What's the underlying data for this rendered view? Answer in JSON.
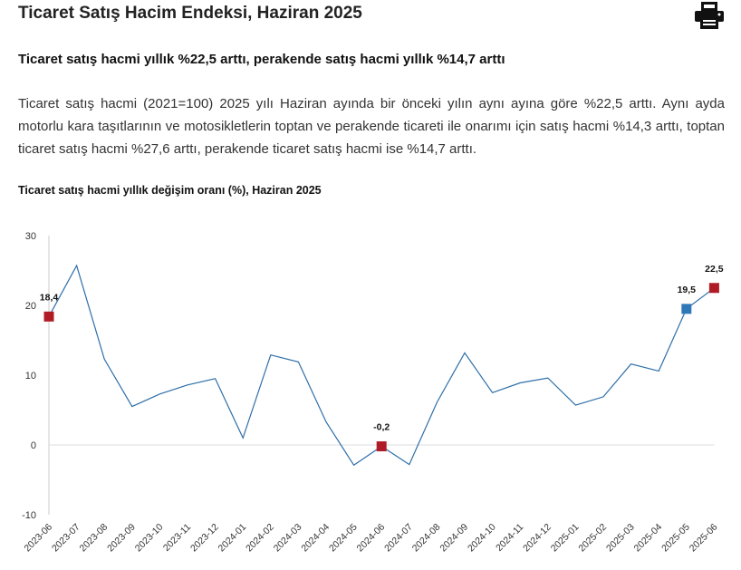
{
  "page": {
    "title": "Ticaret Satış Hacim Endeksi, Haziran 2025",
    "print_icon": "printer-icon",
    "subtitle": "Ticaret satış hacmi yıllık %22,5 arttı, perakende satış hacmi yıllık %14,7 arttı",
    "body": "Ticaret satış hacmi (2021=100) 2025 yılı Haziran ayında bir önceki yılın aynı ayına göre %22,5 arttı. Aynı ayda motorlu kara taşıtlarının ve motosikletlerin toptan ve perakende ticareti ile onarımı için satış hacmi %14,3 arttı, toptan ticaret satış hacmi %27,6 arttı, perakende ticaret satış hacmi ise %14,7 arttı."
  },
  "chart_data": {
    "type": "line",
    "title": "Ticaret satış hacmi yıllık değişim oranı (%), Haziran 2025",
    "xlabel": "",
    "ylabel": "",
    "ylim": [
      -10,
      30
    ],
    "yticks": [
      "30",
      "20",
      "10",
      "0",
      "-10"
    ],
    "grid": false,
    "line_color": "#2e6fa8",
    "categories": [
      "2023-06",
      "2023-07",
      "2023-08",
      "2023-09",
      "2023-10",
      "2023-11",
      "2023-12",
      "2024-01",
      "2024-02",
      "2024-03",
      "2024-04",
      "2024-05",
      "2024-06",
      "2024-07",
      "2024-08",
      "2024-09",
      "2024-10",
      "2024-11",
      "2024-12",
      "2025-01",
      "2025-02",
      "2025-03",
      "2025-04",
      "2025-05",
      "2025-06"
    ],
    "values": [
      18.4,
      25.7,
      12.3,
      5.5,
      7.3,
      8.6,
      9.5,
      1.0,
      12.9,
      11.9,
      3.3,
      -2.9,
      -0.2,
      -2.8,
      6.1,
      13.2,
      7.5,
      8.9,
      9.6,
      5.7,
      6.9,
      11.6,
      10.6,
      19.5,
      22.5
    ],
    "markers": [
      {
        "index": 0,
        "label": "18,4",
        "color": "#b01c26"
      },
      {
        "index": 12,
        "label": "-0,2",
        "color": "#b01c26"
      },
      {
        "index": 23,
        "label": "19,5",
        "color": "#2e78b8"
      },
      {
        "index": 24,
        "label": "22,5",
        "color": "#b01c26"
      }
    ]
  }
}
